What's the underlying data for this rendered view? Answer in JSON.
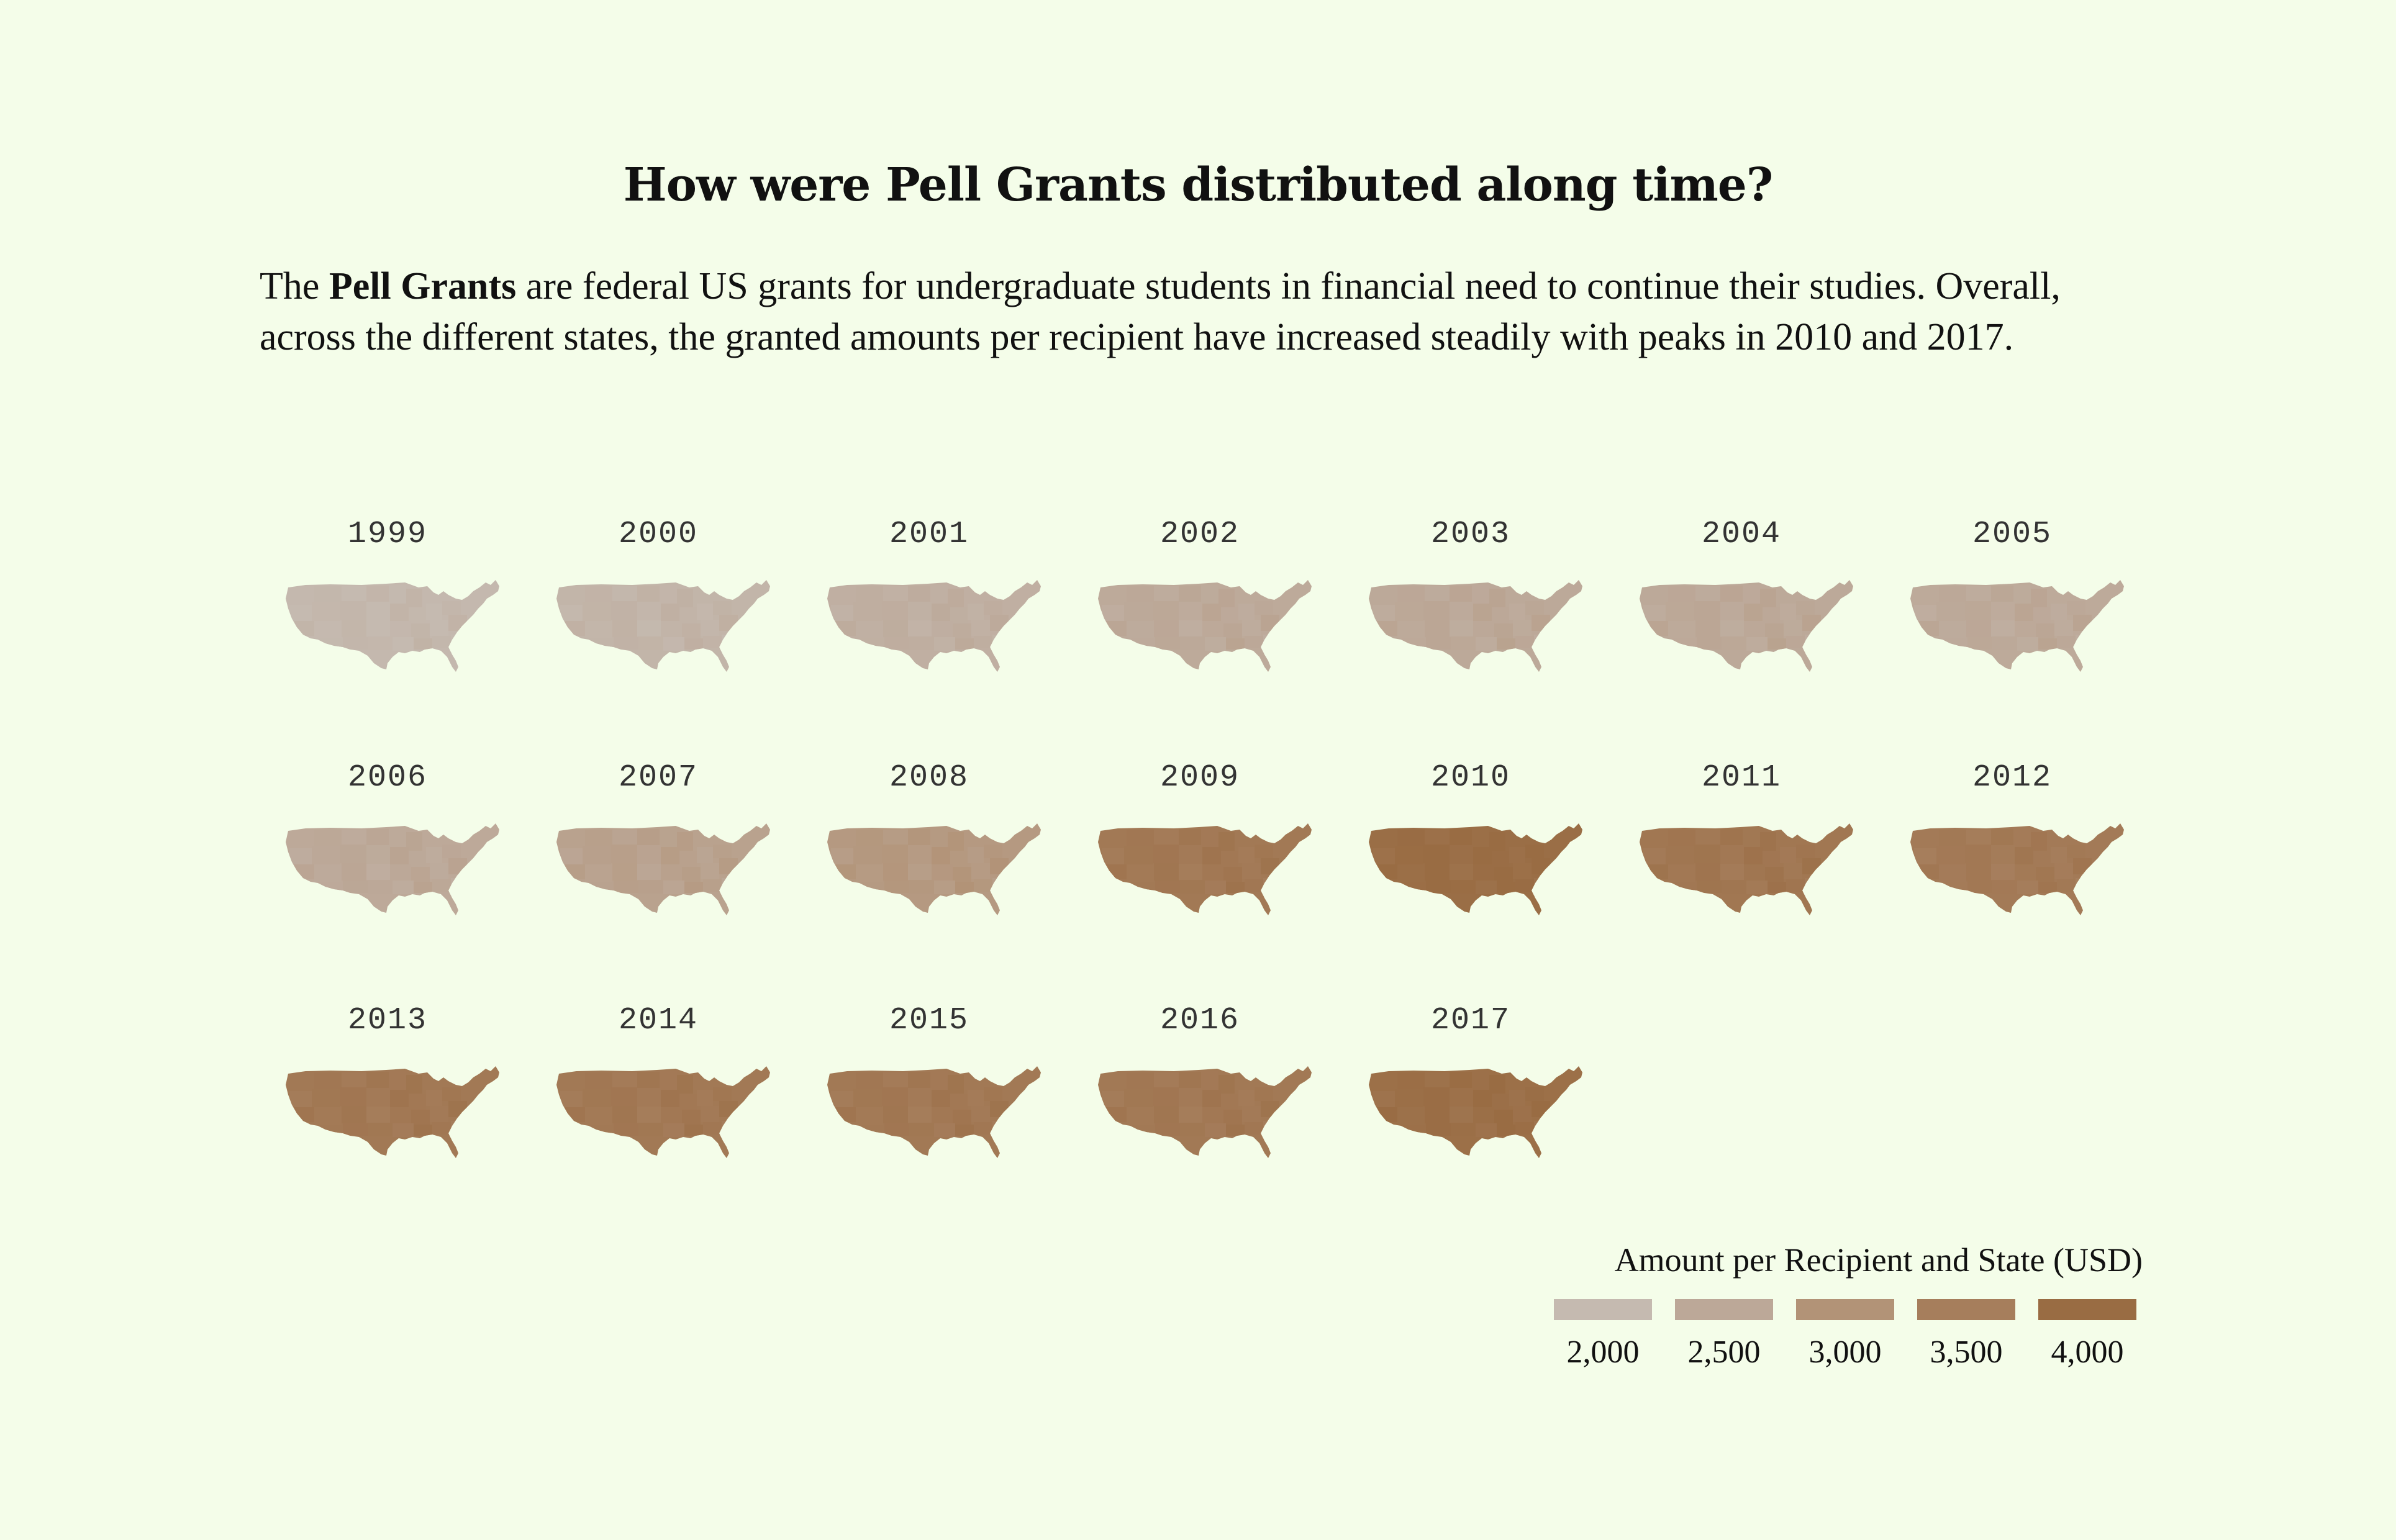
{
  "title": "How were Pell Grants distributed along time?",
  "description": {
    "prefix": "The ",
    "bold": "Pell Grants",
    "suffix": " are federal US grants for undergraduate students in financial need to continue their studies. Overall, across the different states, the granted amounts per recipient have increased steadily with peaks in 2010 and 2017."
  },
  "chart_data": {
    "type": "heatmap",
    "subtype": "small-multiple choropleth maps of the US",
    "years": [
      {
        "year": "1999",
        "value": 2050
      },
      {
        "year": "2000",
        "value": 2150
      },
      {
        "year": "2001",
        "value": 2300
      },
      {
        "year": "2002",
        "value": 2450
      },
      {
        "year": "2003",
        "value": 2480
      },
      {
        "year": "2004",
        "value": 2480
      },
      {
        "year": "2005",
        "value": 2450
      },
      {
        "year": "2006",
        "value": 2470
      },
      {
        "year": "2007",
        "value": 2650
      },
      {
        "year": "2008",
        "value": 2850
      },
      {
        "year": "2009",
        "value": 3650
      },
      {
        "year": "2010",
        "value": 3950
      },
      {
        "year": "2011",
        "value": 3700
      },
      {
        "year": "2012",
        "value": 3600
      },
      {
        "year": "2013",
        "value": 3650
      },
      {
        "year": "2014",
        "value": 3650
      },
      {
        "year": "2015",
        "value": 3650
      },
      {
        "year": "2016",
        "value": 3650
      },
      {
        "year": "2017",
        "value": 3900
      }
    ],
    "legend": {
      "title": "Amount per Recipient and State (USD)",
      "ticks": [
        "2,000",
        "2,500",
        "3,000",
        "3,500",
        "4,000"
      ],
      "values": [
        2000,
        2500,
        3000,
        3500,
        4000
      ],
      "colors": [
        "#c5bab0",
        "#bca898",
        "#b29377",
        "#a67e5c",
        "#996c43"
      ],
      "placement": "bottom-right"
    }
  }
}
